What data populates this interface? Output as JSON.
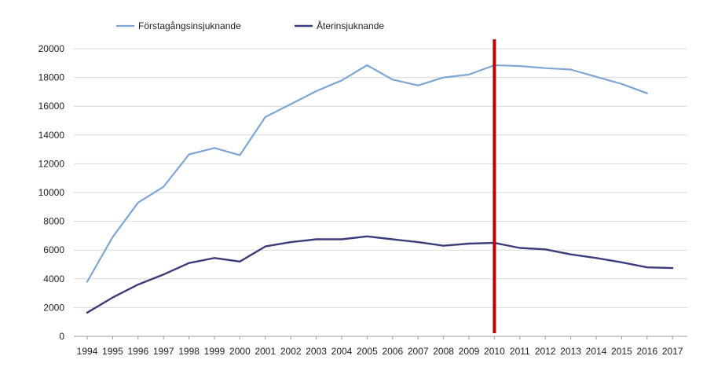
{
  "chart_data": {
    "type": "line",
    "title": "",
    "xlabel": "",
    "ylabel": "",
    "x": [
      "1994",
      "1995",
      "1996",
      "1997",
      "1998",
      "1999",
      "2000",
      "2001",
      "2002",
      "2003",
      "2004",
      "2005",
      "2006",
      "2007",
      "2008",
      "2009",
      "2010",
      "2011",
      "2012",
      "2013",
      "2014",
      "2015",
      "2016",
      "2017"
    ],
    "ylim": [
      0,
      20000
    ],
    "yticks": [
      0,
      2000,
      4000,
      6000,
      8000,
      10000,
      12000,
      14000,
      16000,
      18000,
      20000
    ],
    "grid": true,
    "legend_position": "top-left",
    "series": [
      {
        "name": "Förstagångsinsjuknande",
        "color": "#7ea6d4",
        "values": [
          3800,
          6900,
          9300,
          10400,
          12650,
          13100,
          12600,
          15250,
          16150,
          17050,
          17800,
          18850,
          17850,
          17450,
          18000,
          18200,
          18850,
          18800,
          18650,
          18550,
          18050,
          17550,
          16900,
          null
        ]
      },
      {
        "name": "Återinsjuknande",
        "color": "#3b3c7a",
        "values": [
          1650,
          2700,
          3600,
          4300,
          5100,
          5450,
          5200,
          6250,
          6550,
          6750,
          6750,
          6950,
          6750,
          6550,
          6300,
          6450,
          6500,
          6150,
          6050,
          5700,
          5450,
          5150,
          4800,
          4750
        ]
      }
    ],
    "annotations": [
      {
        "type": "vertical-line",
        "x": "2010",
        "color": "#c00000"
      }
    ]
  }
}
